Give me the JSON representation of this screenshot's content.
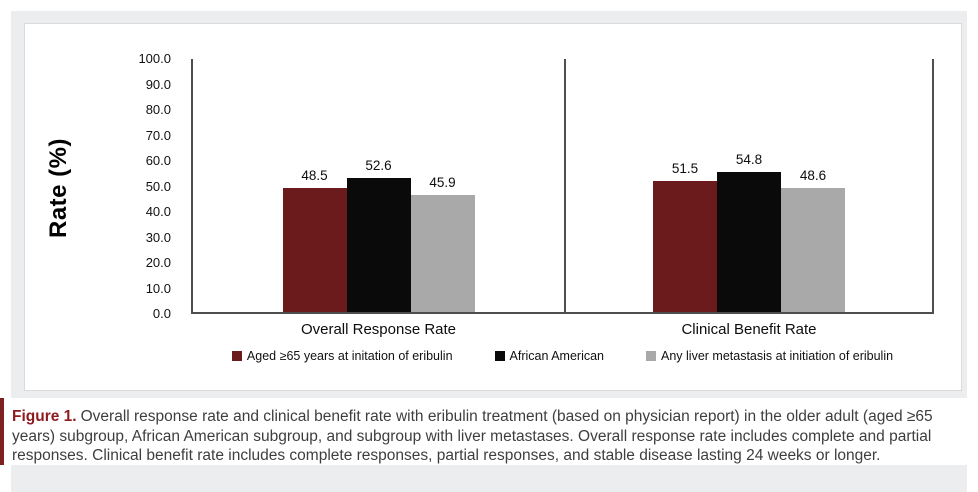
{
  "page": {
    "background_color": "#ffffff",
    "panel_color": "#ebedee"
  },
  "chart_data": {
    "type": "bar",
    "categories": [
      "Overall Response Rate",
      "Clinical Benefit Rate"
    ],
    "series": [
      {
        "name": "Aged ≥65 years at initation of eribulin",
        "color": "#6c1b1d",
        "values": [
          48.5,
          51.5
        ]
      },
      {
        "name": "African American",
        "color": "#0a0a0a",
        "values": [
          52.6,
          54.8
        ]
      },
      {
        "name": "Any liver metastasis at initiation of eribulin",
        "color": "#a9a9a9",
        "values": [
          45.9,
          48.6
        ]
      }
    ],
    "title": "",
    "xlabel": "",
    "ylabel": "Rate (%)",
    "ylim": [
      0,
      100
    ],
    "ytick_labels": [
      "100.0",
      "90.0",
      "80.0",
      "70.0",
      "60.0",
      "50.0",
      "40.0",
      "30.0",
      "20.0",
      "10.0",
      "0.0"
    ],
    "value_labels_shown": true,
    "grid": false,
    "legend_position": "bottom",
    "axis_color": "#4e4e4e"
  },
  "caption": {
    "label": "Figure 1.",
    "label_color": "#8e1b1f",
    "accent_bar_color": "#7c2022",
    "text": "Overall response rate and clinical benefit rate with eribulin treatment (based on physician report) in the older adult (aged ≥65 years) subgroup, African American subgroup, and subgroup with liver metastases. Overall response rate includes complete and partial responses. Clinical benefit rate includes complete responses, partial responses, and stable disease lasting 24 weeks or longer."
  }
}
